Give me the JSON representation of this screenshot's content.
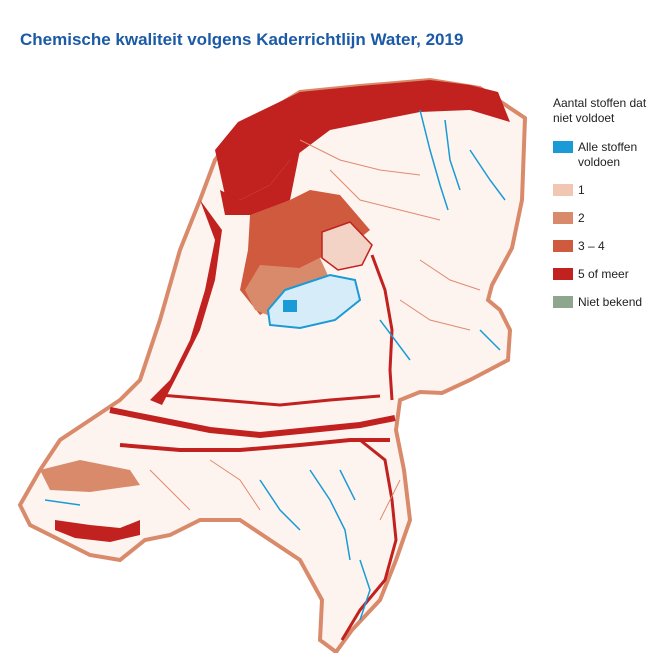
{
  "title": "Chemische kwaliteit volgens Kaderrichtlijn Water, 2019",
  "legend": {
    "title": "Aantal stoffen dat niet voldoet",
    "items": [
      {
        "label": "Alle stoffen voldoen",
        "color": "#1a9ad6"
      },
      {
        "label": "1",
        "color": "#f1c7b3"
      },
      {
        "label": "2",
        "color": "#d98a6a"
      },
      {
        "label": "3 – 4",
        "color": "#cf5a3e"
      },
      {
        "label": "5 of meer",
        "color": "#c1211f"
      },
      {
        "label": "Niet bekend",
        "color": "#8ea58e"
      }
    ]
  }
}
